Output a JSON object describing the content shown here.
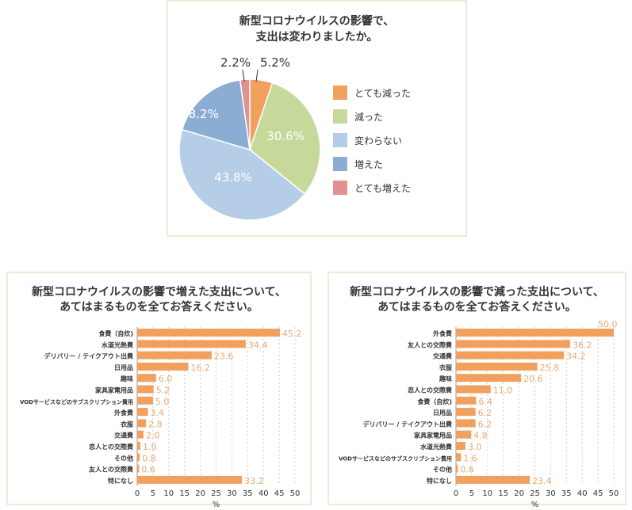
{
  "colors": {
    "bar": "#f2a05e",
    "value_text": "#e8a873",
    "grid": "#cccccc"
  },
  "chart_data": [
    {
      "type": "pie",
      "title_line1": "新型コロナウイルスの影響で、",
      "title_line2": "支出は変わりましたか。",
      "labels": [
        "とても減った",
        "減った",
        "変わらない",
        "増えた",
        "とても増えた"
      ],
      "values": [
        5.2,
        30.6,
        43.8,
        18.2,
        2.2
      ],
      "value_labels": [
        "5.2%",
        "30.6%",
        "43.8%",
        "18.2%",
        "2.2%"
      ],
      "colors": [
        "#f2a05e",
        "#c6d99b",
        "#b5cde7",
        "#8badd4",
        "#e09191"
      ],
      "legend": "right"
    },
    {
      "type": "bar",
      "orientation": "horizontal",
      "title_line1": "新型コロナウイルスの影響で増えた支出について、",
      "title_line2": "あてはまるものを全てお答えください。",
      "categories": [
        "食費（自炊)",
        "水道光熱費",
        "デリバリー / テイクアウト出費",
        "日用品",
        "趣味",
        "家具家電用品",
        "VODサービスなどのサブスクリプション費用",
        "外食費",
        "衣服",
        "交通費",
        "恋人との交際費",
        "その他",
        "友人との交際費",
        "特になし"
      ],
      "values": [
        45.2,
        34.4,
        23.6,
        16.2,
        6.0,
        5.2,
        5.0,
        3.4,
        2.8,
        2.0,
        1.0,
        0.8,
        0.6,
        33.2
      ],
      "value_labels": [
        "45.2",
        "34.4",
        "23.6",
        "16.2",
        "6.0",
        "5.2",
        "5.0",
        "3.4",
        "2.8",
        "2.0",
        "1.0",
        "0.8",
        "0.6",
        "33.2"
      ],
      "xlabel": "%",
      "xlim": [
        0,
        50
      ],
      "xticks": [
        "0",
        "5",
        "10",
        "15",
        "20",
        "25",
        "30",
        "35",
        "40",
        "45",
        "50"
      ],
      "grid": true
    },
    {
      "type": "bar",
      "orientation": "horizontal",
      "title_line1": "新型コロナウイルスの影響で減った支出について、",
      "title_line2": "あてはまるものを全てお答えください。",
      "categories": [
        "外食費",
        "友人との交際費",
        "交通費",
        "衣服",
        "趣味",
        "恋人との交際費",
        "食費（自炊)",
        "日用品",
        "デリバリー / テイクアウト出費",
        "家具家電用品",
        "水道光熱費",
        "VODサービスなどのサブスクリプション費用",
        "その他",
        "特になし"
      ],
      "values": [
        50.0,
        36.2,
        34.2,
        25.8,
        20.6,
        11.0,
        6.4,
        6.2,
        6.2,
        4.8,
        3.0,
        1.6,
        0.6,
        23.4
      ],
      "value_labels": [
        "50.0",
        "36.2",
        "34.2",
        "25.8",
        "20.6",
        "11.0",
        "6.4",
        "6.2",
        "6.2",
        "4.8",
        "3.0",
        "1.6",
        "0.6",
        "23.4"
      ],
      "xlabel": "%",
      "xlim": [
        0,
        50
      ],
      "xticks": [
        "0",
        "5",
        "10",
        "15",
        "20",
        "25",
        "30",
        "35",
        "40",
        "45",
        "50"
      ],
      "grid": true
    }
  ]
}
